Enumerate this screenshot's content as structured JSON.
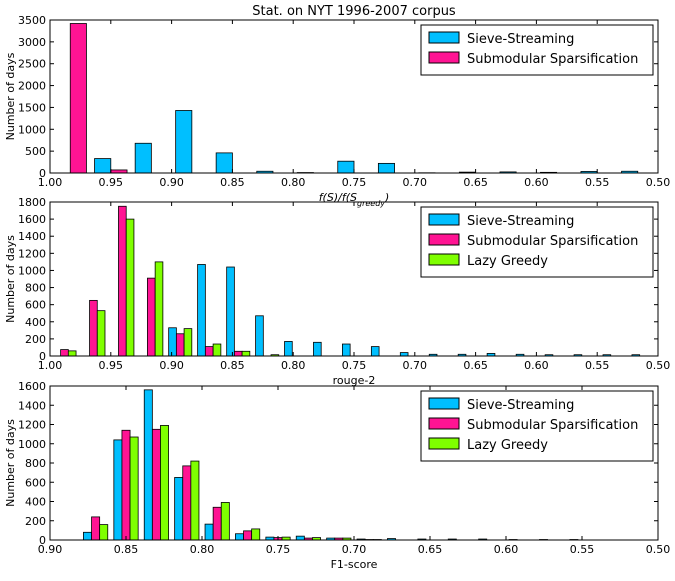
{
  "colors": {
    "sieve_streaming": "#00bfff",
    "submodular_sparsification": "#ff1493",
    "lazy_greedy": "#7fff00",
    "bar_edge": "#000000"
  },
  "chart_data": [
    {
      "type": "bar",
      "title": "Stat. on NYT 1996-2007 corpus",
      "xlabel": "f(S)/f(S_greedy)",
      "ylabel": "Number of days",
      "xlim": [
        1.0,
        0.5
      ],
      "ylim": [
        0,
        3500
      ],
      "xticks": [
        "1.00",
        "0.95",
        "0.90",
        "0.85",
        "0.80",
        "0.75",
        "0.70",
        "0.65",
        "0.60",
        "0.55",
        "0.50"
      ],
      "yticks": [
        "0",
        "500",
        "1000",
        "1500",
        "2000",
        "2500",
        "3000",
        "3500"
      ],
      "legend_position": "top-right",
      "bin_edges": [
        1.0,
        0.9667,
        0.9333,
        0.9,
        0.8667,
        0.8333,
        0.8,
        0.7667,
        0.7333,
        0.7,
        0.6667,
        0.6333,
        0.6,
        0.5667,
        0.5333,
        0.5
      ],
      "series": [
        {
          "name": "Sieve-Streaming",
          "values": [
            0,
            330,
            680,
            1430,
            460,
            40,
            10,
            270,
            220,
            5,
            20,
            25,
            15,
            35,
            40
          ]
        },
        {
          "name": "Submodular Sparsification",
          "values": [
            3420,
            70,
            0,
            0,
            0,
            0,
            0,
            0,
            0,
            0,
            0,
            0,
            0,
            0,
            0
          ]
        }
      ]
    },
    {
      "type": "bar",
      "title": "",
      "xlabel": "rouge-2",
      "ylabel": "Number of days",
      "xlim": [
        1.0,
        0.5
      ],
      "ylim": [
        0,
        1800
      ],
      "xticks": [
        "1.00",
        "0.95",
        "0.90",
        "0.85",
        "0.80",
        "0.75",
        "0.70",
        "0.65",
        "0.60",
        "0.55",
        "0.50"
      ],
      "yticks": [
        "0",
        "200",
        "400",
        "600",
        "800",
        "1000",
        "1200",
        "1400",
        "1600",
        "1800"
      ],
      "legend_position": "top-right",
      "bin_edges": [
        1.0,
        0.9762,
        0.9524,
        0.9286,
        0.9048,
        0.881,
        0.8571,
        0.8333,
        0.8095,
        0.7857,
        0.7619,
        0.7381,
        0.7143,
        0.6905,
        0.6667,
        0.6429,
        0.619,
        0.5952,
        0.5714,
        0.5476,
        0.5238,
        0.5
      ],
      "series": [
        {
          "name": "Sieve-Streaming",
          "values": [
            0,
            0,
            0,
            0,
            330,
            1070,
            1040,
            470,
            170,
            160,
            140,
            110,
            40,
            20,
            20,
            30,
            20,
            15,
            15,
            15,
            15
          ]
        },
        {
          "name": "Submodular Sparsification",
          "values": [
            75,
            650,
            1750,
            910,
            260,
            110,
            55,
            0,
            0,
            0,
            0,
            0,
            0,
            0,
            0,
            0,
            0,
            0,
            0,
            0,
            0
          ]
        },
        {
          "name": "Lazy Greedy",
          "values": [
            60,
            530,
            1600,
            1100,
            320,
            140,
            55,
            15,
            0,
            0,
            0,
            0,
            0,
            0,
            0,
            0,
            0,
            0,
            0,
            0,
            0
          ]
        }
      ]
    },
    {
      "type": "bar",
      "title": "",
      "xlabel": "F1-score",
      "ylabel": "Number of days",
      "xlim": [
        0.9,
        0.5
      ],
      "ylim": [
        0,
        1600
      ],
      "xticks": [
        "0.90",
        "0.85",
        "0.80",
        "0.75",
        "0.70",
        "0.65",
        "0.60",
        "0.55",
        "0.50"
      ],
      "yticks": [
        "0",
        "200",
        "400",
        "600",
        "800",
        "1000",
        "1200",
        "1400",
        "1600"
      ],
      "legend_position": "top-right",
      "bin_edges": [
        0.9,
        0.88,
        0.86,
        0.84,
        0.82,
        0.8,
        0.78,
        0.76,
        0.74,
        0.72,
        0.7,
        0.68,
        0.66,
        0.64,
        0.62,
        0.6,
        0.58,
        0.56,
        0.54,
        0.52,
        0.5
      ],
      "series": [
        {
          "name": "Sieve-Streaming",
          "values": [
            0,
            80,
            1040,
            1560,
            650,
            165,
            65,
            30,
            40,
            20,
            10,
            15,
            10,
            10,
            10,
            5,
            5,
            5,
            0,
            0
          ]
        },
        {
          "name": "Submodular Sparsification",
          "values": [
            0,
            240,
            1140,
            1150,
            770,
            340,
            95,
            25,
            20,
            20,
            5,
            0,
            0,
            0,
            0,
            0,
            0,
            0,
            0,
            0
          ]
        },
        {
          "name": "Lazy Greedy",
          "values": [
            0,
            160,
            1070,
            1190,
            820,
            390,
            115,
            30,
            25,
            20,
            5,
            0,
            0,
            0,
            0,
            0,
            0,
            0,
            0,
            0
          ]
        }
      ]
    }
  ]
}
